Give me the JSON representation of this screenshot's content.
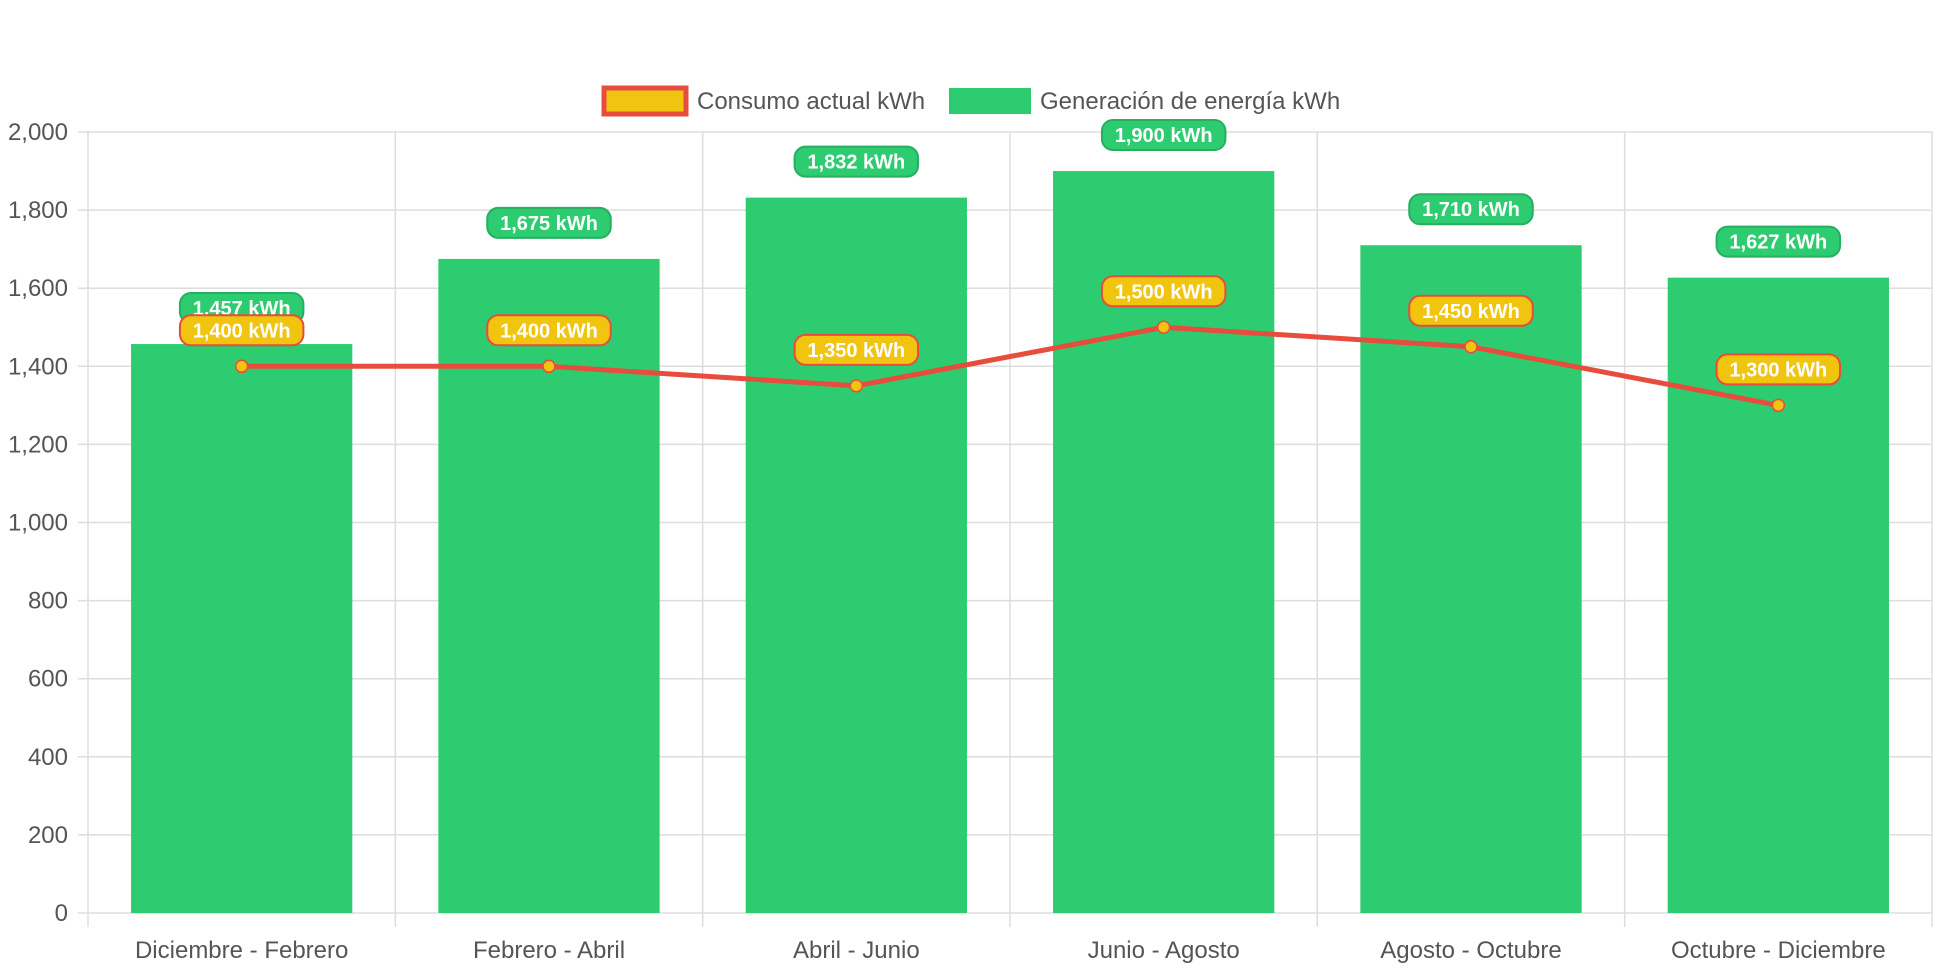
{
  "chart_data": {
    "type": "bar",
    "categories": [
      "Diciembre - Febrero",
      "Febrero - Abril",
      "Abril - Junio",
      "Junio - Agosto",
      "Agosto - Octubre",
      "Octubre - Diciembre"
    ],
    "series": [
      {
        "name": "Generación de energía kWh",
        "type": "bar",
        "values": [
          1457,
          1675,
          1832,
          1900,
          1710,
          1627
        ],
        "labels": [
          "1,457 kWh",
          "1,675 kWh",
          "1,832 kWh",
          "1,900 kWh",
          "1,710 kWh",
          "1,627 kWh"
        ],
        "color": "#2ecc71",
        "label_border": "#27ae60"
      },
      {
        "name": "Consumo actual kWh",
        "type": "line",
        "values": [
          1400,
          1400,
          1350,
          1500,
          1450,
          1300
        ],
        "labels": [
          "1,400 kWh",
          "1,400 kWh",
          "1,350 kWh",
          "1,500 kWh",
          "1,450 kWh",
          "1,300 kWh"
        ],
        "color": "#e74c3c",
        "point_color": "#f1c40f",
        "label_bg": "#f1c40f",
        "label_border": "#e74c3c"
      }
    ],
    "legend_order": [
      "Consumo actual kWh",
      "Generación de energía kWh"
    ],
    "legend_position": "top",
    "ylim": [
      0,
      2000
    ],
    "yticks": [
      0,
      200,
      400,
      600,
      800,
      1000,
      1200,
      1400,
      1600,
      1800,
      2000
    ],
    "ytick_labels": [
      "0",
      "200",
      "400",
      "600",
      "800",
      "1,000",
      "1,200",
      "1,400",
      "1,600",
      "1,800",
      "2,000"
    ],
    "grid": true,
    "title": "",
    "xlabel": "",
    "ylabel": ""
  }
}
